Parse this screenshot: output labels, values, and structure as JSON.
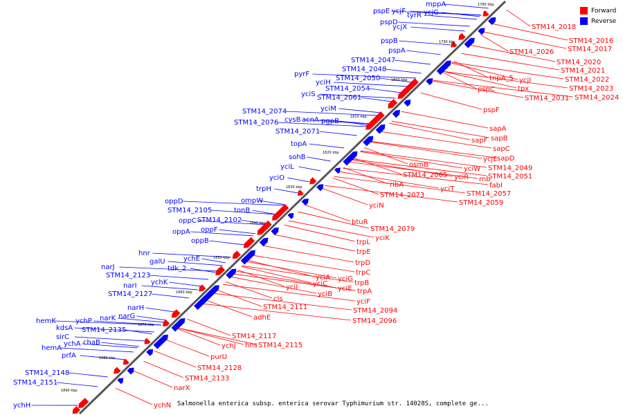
{
  "colors": {
    "forward": "#ff0000",
    "reverse": "#0000ff",
    "backbone": "#555555"
  },
  "legend": [
    {
      "label": "Forward",
      "color": "#ff0000"
    },
    {
      "label": "Reverse",
      "color": "#0000ff"
    }
  ],
  "caption": "Salmonella enterica subsp. enterica serovar Typhimurium str. 14028S, complete ge...",
  "ticks": [
    "1780 kbp",
    "1790 kbp",
    "1800 kbp",
    "1810 kbp",
    "1820 kbp",
    "1830 kbp",
    "1840 kbp",
    "1850 kbp",
    "1860 kbp",
    "1870 kbp",
    "1880 kbp",
    "1890 kbp"
  ],
  "reverse_labels": [
    "mppA",
    "pspE",
    "ycjF",
    "ycjG",
    "tyrR",
    "pspD",
    "ycjX",
    "pspB",
    "pspA",
    "STM14_2047",
    "STM14_2048",
    "pyrF",
    "yciH",
    "STM14_2050",
    "yciS",
    "STM14_2054",
    "STM14_2061",
    "yciM",
    "STM14_2074",
    "cysB",
    "acnA",
    "pgpB",
    "STM14_2076",
    "STM14_2071",
    "topA",
    "sohB",
    "yciL",
    "yciO",
    "trpH",
    "ompW",
    "oppD",
    "tonB",
    "STM14_2105",
    "oppC",
    "STM14_2102",
    "oppF",
    "oppA",
    "oppB",
    "hnr",
    "ychE",
    "galU",
    "tdk_2",
    "narJ",
    "STM14_2123",
    "ychK",
    "narI",
    "STM14_2127",
    "narH",
    "narK",
    "narG",
    "hemK",
    "ychP",
    "kdsA",
    "STM14_2135",
    "sirC",
    "ychA",
    "chaB",
    "hemA",
    "prfA",
    "STM14_2148",
    "STM14_2151",
    "ychH"
  ],
  "forward_labels": [
    "STM14_2018",
    "STM14_2016",
    "STM14_2017",
    "STM14_2026",
    "STM14_2020",
    "STM14_2021",
    "tnpA_5",
    "ycjI",
    "STM14_2022",
    "tpx",
    "STM14_2023",
    "pspC",
    "STM14_2031",
    "STM14_2024",
    "pspF",
    "sapA",
    "sapB",
    "sapF",
    "sapC",
    "ycjE",
    "sapD",
    "STM14_2049",
    "osmB",
    "yciW",
    "rnb",
    "STM14_2051",
    "STM14_2065",
    "yciR",
    "fabI",
    "ribA",
    "yciT",
    "STM14_2057",
    "STM14_2073",
    "STM14_2059",
    "yciN",
    "btuR",
    "STM14_2079",
    "yciK",
    "trpL",
    "trpE",
    "trpD",
    "trpC",
    "yciA",
    "yciG",
    "trpB",
    "yciC",
    "yciE",
    "trpA",
    "yciI",
    "yciB",
    "cls",
    "yciF",
    "STM14_2111",
    "STM14_2094",
    "adhE",
    "STM14_2096",
    "STM14_2117",
    "hns",
    "STM14_2115",
    "ychJ",
    "purU",
    "STM14_2128",
    "STM14_2133",
    "narX",
    "ychN"
  ]
}
